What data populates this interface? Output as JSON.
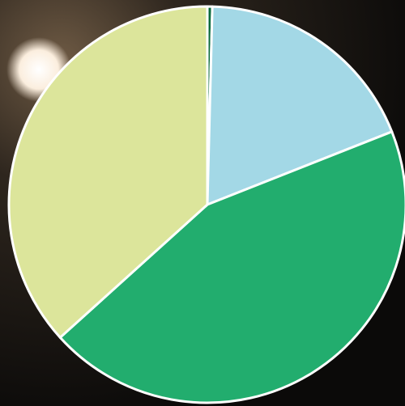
{
  "chart_data": {
    "type": "pie",
    "categories": [
      null,
      null,
      null,
      null
    ],
    "values": [
      0.4,
      18.6,
      44.3,
      36.7
    ],
    "colors": [
      "#0b6b3c",
      "#a3d8e6",
      "#22ad6e",
      "#dce59b"
    ]
  }
}
